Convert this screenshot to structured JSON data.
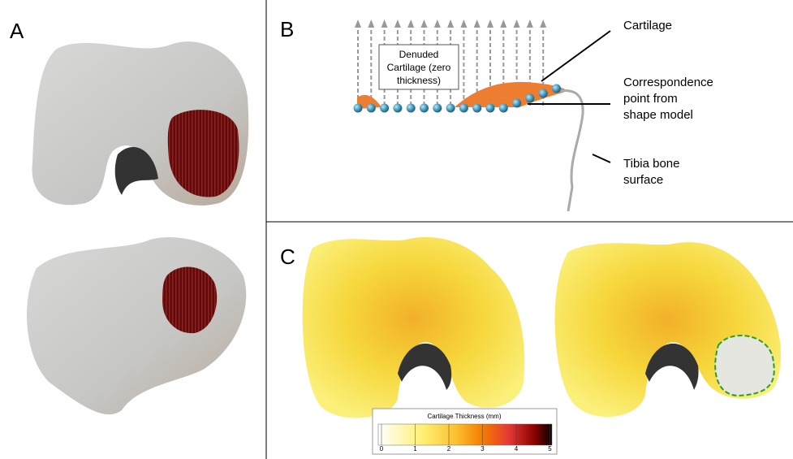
{
  "panels": {
    "a": {
      "label": "A"
    },
    "b": {
      "label": "B",
      "box_lines": [
        "Denuded",
        "Cartilage (zero",
        "thickness)"
      ],
      "cartilage": "Cartilage",
      "correspondence_lines": [
        "Correspondence",
        "point from",
        "shape model"
      ],
      "tibia_lines": [
        "Tibia bone",
        "surface"
      ]
    },
    "c": {
      "label": "C",
      "colorbar": {
        "title": "Cartilage Thickness (mm)",
        "ticks": [
          0,
          1,
          2,
          3,
          4,
          5
        ]
      }
    }
  }
}
